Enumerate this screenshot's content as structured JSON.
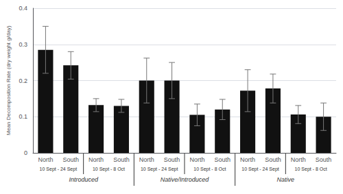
{
  "chart_data": {
    "type": "bar",
    "ylabel": "Mean Decomposition Rate (dry weight g/day)",
    "categories": [
      "North",
      "South",
      "North",
      "South",
      "North",
      "South",
      "North",
      "South",
      "North",
      "South",
      "North",
      "South"
    ],
    "values": [
      0.285,
      0.242,
      0.132,
      0.13,
      0.2,
      0.2,
      0.105,
      0.12,
      0.172,
      0.178,
      0.106,
      0.1
    ],
    "errors": [
      0.065,
      0.038,
      0.018,
      0.018,
      0.062,
      0.05,
      0.03,
      0.028,
      0.058,
      0.04,
      0.025,
      0.038
    ],
    "date_labels": [
      "10 Sept - 24 Sept",
      "10 Sept - 8 Oct",
      "10 Sept - 24 Sept",
      "10 Sept - 8 Oct",
      "10 Sept - 24 Sept",
      "10 Sept - 8 Oct"
    ],
    "group_labels": [
      "Introduced",
      "Native/Introduced",
      "Native"
    ],
    "color": "#111111",
    "ylim": [
      0,
      0.4
    ],
    "yticks": [
      0,
      0.1,
      0.2,
      0.3,
      0.4
    ],
    "grid": true
  }
}
